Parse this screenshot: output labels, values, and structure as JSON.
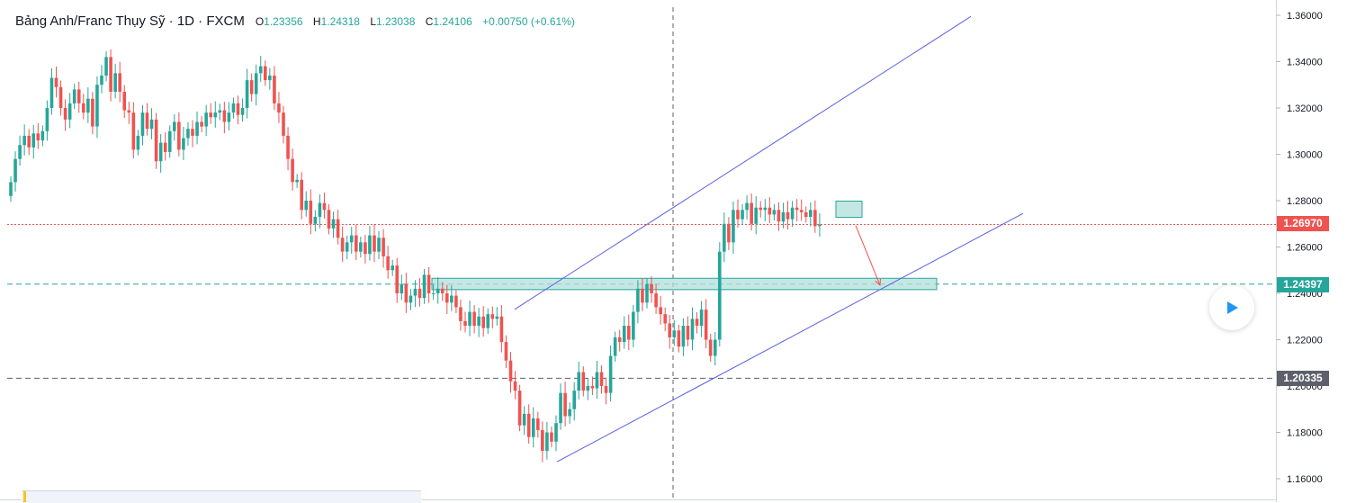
{
  "header": {
    "symbol": "Bảng Anh/Franc Thụy Sỹ · 1D · FXCM",
    "open_label": "O",
    "open": "1.23356",
    "high_label": "H",
    "high": "1.24318",
    "low_label": "L",
    "low": "1.23038",
    "close_label": "C",
    "close": "1.24106",
    "change": "+0.00750 (+0.61%)"
  },
  "price_badges": {
    "current": "1.26970",
    "support": "1.24397",
    "low_line": "1.20335"
  },
  "colors": {
    "up": "#26a69a",
    "down": "#ef5350",
    "channel": "#5b5fe0",
    "zone_fill": "#b2dfdb",
    "current_line": "#ef5350",
    "support_line": "#26a69a",
    "low_line": "#5d606b"
  },
  "chart_data": {
    "type": "candlestick",
    "y_axis_ticks": [
      "1.36000",
      "1.34000",
      "1.32000",
      "1.30000",
      "1.28000",
      "1.26000",
      "1.24000",
      "1.22000",
      "1.20000",
      "1.18000",
      "1.16000"
    ],
    "ylim": [
      1.15,
      1.3664
    ],
    "grid": false,
    "horizontal_lines": [
      {
        "price": 1.2697,
        "style": "dotted",
        "color": "#ef5350"
      },
      {
        "price": 1.24397,
        "style": "dashed",
        "color": "#26a69a"
      },
      {
        "price": 1.20335,
        "style": "dashed",
        "color": "#5d606b"
      }
    ],
    "candle_closes": [
      1.288,
      1.298,
      1.304,
      1.308,
      1.303,
      1.309,
      1.306,
      1.31,
      1.32,
      1.333,
      1.329,
      1.32,
      1.315,
      1.322,
      1.328,
      1.322,
      1.318,
      1.324,
      1.312,
      1.33,
      1.334,
      1.342,
      1.327,
      1.335,
      1.327,
      1.319,
      1.318,
      1.302,
      1.308,
      1.318,
      1.311,
      1.315,
      1.297,
      1.305,
      1.301,
      1.31,
      1.314,
      1.302,
      1.307,
      1.311,
      1.308,
      1.314,
      1.312,
      1.318,
      1.316,
      1.318,
      1.319,
      1.314,
      1.318,
      1.322,
      1.317,
      1.32,
      1.332,
      1.326,
      1.335,
      1.338,
      1.332,
      1.334,
      1.322,
      1.318,
      1.308,
      1.298,
      1.288,
      1.289,
      1.276,
      1.28,
      1.27,
      1.273,
      1.279,
      1.276,
      1.268,
      1.272,
      1.264,
      1.258,
      1.262,
      1.265,
      1.258,
      1.262,
      1.257,
      1.265,
      1.258,
      1.264,
      1.256,
      1.25,
      1.252,
      1.24,
      1.244,
      1.236,
      1.239,
      1.242,
      1.238,
      1.248,
      1.24,
      1.24,
      1.242,
      1.24,
      1.236,
      1.239,
      1.234,
      1.228,
      1.226,
      1.232,
      1.226,
      1.23,
      1.225,
      1.231,
      1.229,
      1.23,
      1.219,
      1.211,
      1.202,
      1.198,
      1.183,
      1.188,
      1.178,
      1.186,
      1.181,
      1.172,
      1.18,
      1.176,
      1.184,
      1.197,
      1.187,
      1.19,
      1.198,
      1.206,
      1.198,
      1.2,
      1.199,
      1.206,
      1.2,
      1.197,
      1.213,
      1.221,
      1.219,
      1.226,
      1.22,
      1.232,
      1.242,
      1.236,
      1.244,
      1.24,
      1.234,
      1.231,
      1.227,
      1.221,
      1.224,
      1.217,
      1.226,
      1.22,
      1.229,
      1.226,
      1.233,
      1.22,
      1.213,
      1.22,
      1.258,
      1.27,
      1.262,
      1.276,
      1.272,
      1.276,
      1.279,
      1.27,
      1.277,
      1.276,
      1.277,
      1.274,
      1.276,
      1.271,
      1.275,
      1.272,
      1.277,
      1.276,
      1.275,
      1.273,
      1.276,
      1.269,
      1.2697
    ],
    "channel_upper": {
      "from": [
        1.2331
      ],
      "to": [
        1.3595
      ]
    },
    "channel_lower": {
      "from": [
        1.1673
      ],
      "to": [
        1.2745
      ]
    },
    "support_zone": {
      "low": 1.2416,
      "high": 1.2465
    },
    "projection": {
      "from": 1.2693,
      "to": 1.2435
    }
  }
}
